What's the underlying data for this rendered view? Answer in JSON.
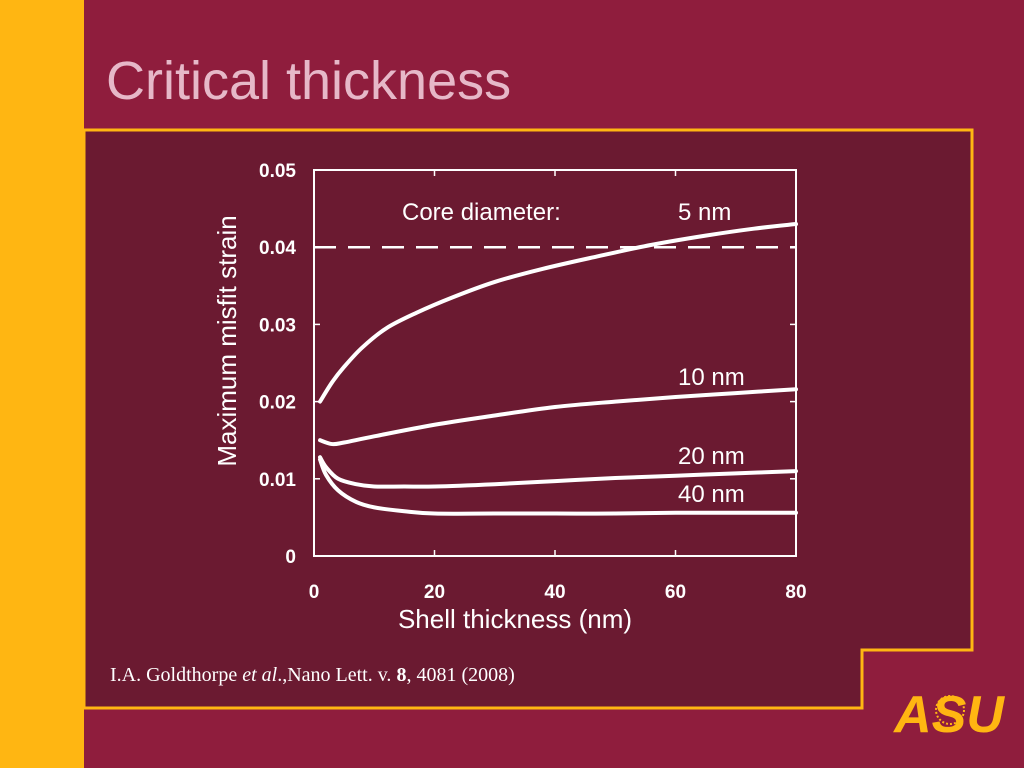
{
  "slide": {
    "title": "Critical thickness",
    "citation": {
      "authors": "I.A. Goldthorpe ",
      "etal": "et al",
      "journal": ".,Nano Lett. v. ",
      "volume": "8",
      "rest": ", 4081 (2008)"
    },
    "logo_text": "ASU"
  },
  "colors": {
    "background": "#8f1d3d",
    "panel": "#6b1a31",
    "gold": "#ffb612",
    "title": "#e6b8c8",
    "curve": "#ffffff"
  },
  "chart_data": {
    "type": "line",
    "title": "",
    "xlabel": "Shell thickness (nm)",
    "ylabel": "Maximum misfit strain",
    "xlim": [
      0,
      80
    ],
    "ylim": [
      0,
      0.05
    ],
    "x_ticks": [
      "0",
      "20",
      "40",
      "60",
      "80"
    ],
    "y_ticks": [
      "0",
      "0.01",
      "0.02",
      "0.03",
      "0.04",
      "0.05"
    ],
    "annotation": "Core diameter:",
    "threshold": {
      "y": 0.04,
      "style": "dashed"
    },
    "grid": false,
    "series": [
      {
        "name": "5 nm",
        "x": [
          1,
          3,
          5,
          8,
          12,
          17,
          23,
          30,
          38,
          47,
          56,
          65,
          73,
          80
        ],
        "y": [
          0.02,
          0.0225,
          0.0245,
          0.027,
          0.0295,
          0.0315,
          0.0335,
          0.0355,
          0.0372,
          0.0388,
          0.0403,
          0.0415,
          0.0424,
          0.043
        ]
      },
      {
        "name": "10 nm",
        "x": [
          1,
          3,
          5,
          10,
          20,
          30,
          40,
          50,
          60,
          70,
          80
        ],
        "y": [
          0.015,
          0.0145,
          0.0147,
          0.0155,
          0.017,
          0.0182,
          0.0193,
          0.02,
          0.0206,
          0.0211,
          0.0216
        ]
      },
      {
        "name": "20 nm",
        "x": [
          1,
          2,
          4,
          7,
          10,
          15,
          20,
          30,
          40,
          50,
          60,
          70,
          80
        ],
        "y": [
          0.0128,
          0.0115,
          0.01,
          0.0093,
          0.009,
          0.009,
          0.009,
          0.0093,
          0.0097,
          0.0101,
          0.0104,
          0.0107,
          0.011
        ]
      },
      {
        "name": "40 nm",
        "x": [
          1,
          2,
          4,
          7,
          10,
          15,
          20,
          30,
          40,
          50,
          60,
          70,
          80
        ],
        "y": [
          0.0125,
          0.0105,
          0.0085,
          0.007,
          0.0063,
          0.0058,
          0.0055,
          0.0055,
          0.0055,
          0.0055,
          0.0056,
          0.0056,
          0.0056
        ]
      }
    ]
  }
}
